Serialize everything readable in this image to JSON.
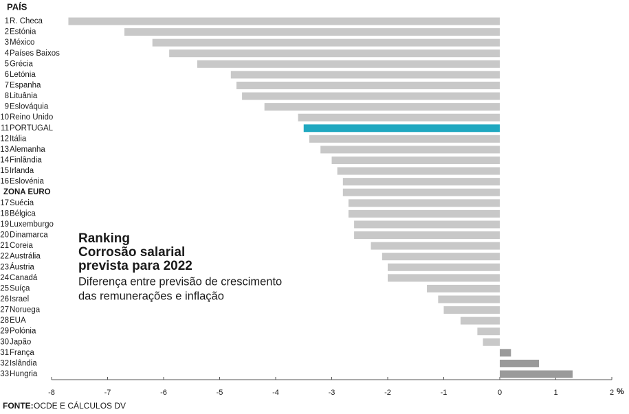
{
  "chart_data": {
    "type": "hbar",
    "column_header": "PAÍS",
    "kicker": "Ranking",
    "title_lines": [
      "Corrosão salarial",
      "prevista para 2022"
    ],
    "subtitle_lines": [
      "Diferença entre previsão de crescimento",
      "das remunerações e inflação"
    ],
    "source_label": "FONTE:",
    "source": "OCDE E CÁLCULOS DV",
    "unit": "%",
    "ranks": [
      "1",
      "2",
      "3",
      "4",
      "5",
      "6",
      "7",
      "8",
      "9",
      "10",
      "11",
      "12",
      "13",
      "14",
      "15",
      "16",
      null,
      "17",
      "18",
      "19",
      "20",
      "21",
      "22",
      "23",
      "24",
      "25",
      "26",
      "27",
      "28",
      "29",
      "30",
      "31",
      "32",
      "33"
    ],
    "categories": [
      "R. Checa",
      "Estónia",
      "México",
      "Países Baixos",
      "Grécia",
      "Letónia",
      "Espanha",
      "Lituânia",
      "Eslováquia",
      "Reino Unido",
      "PORTUGAL",
      "Itália",
      "Alemanha",
      "Finlândia",
      "Irlanda",
      "Eslovénia",
      "ZONA EURO",
      "Suécia",
      "Bélgica",
      "Luxemburgo",
      "Dinamarca",
      "Coreia",
      "Austrália",
      "Áustria",
      "Canadá",
      "Suíça",
      "Israel",
      "Noruega",
      "EUA",
      "Polónia",
      "Japão",
      "França",
      "Islândia",
      "Hungria"
    ],
    "values": [
      -7.7,
      -6.7,
      -6.2,
      -5.9,
      -5.4,
      -4.8,
      -4.7,
      -4.6,
      -4.2,
      -3.6,
      -3.5,
      -3.4,
      -3.2,
      -3.0,
      -2.9,
      -2.8,
      -2.8,
      -2.7,
      -2.7,
      -2.6,
      -2.6,
      -2.3,
      -2.1,
      -2.0,
      -2.0,
      -1.3,
      -1.1,
      -1.0,
      -0.7,
      -0.4,
      -0.3,
      0.2,
      0.7,
      1.3
    ],
    "color": "#c8c8c8",
    "positive_color": "#9a9a9a",
    "highlight_category": "PORTUGAL",
    "highlight_color": "#1fa8c0",
    "rank_color": "#1fa8c0",
    "kicker_color": "#e0603a",
    "bold_category": "ZONA EURO",
    "xlim": [
      -8,
      2
    ],
    "xticks": [
      -8,
      -7,
      -6,
      -5,
      -4,
      -3,
      -2,
      -1,
      0,
      1,
      2
    ]
  }
}
